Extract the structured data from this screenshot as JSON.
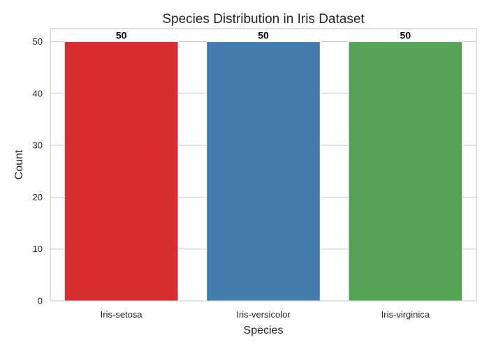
{
  "chart_data": {
    "type": "bar",
    "title": "Species Distribution in Iris Dataset",
    "xlabel": "Species",
    "ylabel": "Count",
    "categories": [
      "Iris-setosa",
      "Iris-versicolor",
      "Iris-virginica"
    ],
    "values": [
      50,
      50,
      50
    ],
    "data_labels": [
      "50",
      "50",
      "50"
    ],
    "colors": [
      "#d62e31",
      "#447cad",
      "#56a356"
    ],
    "ylim": [
      0,
      52.5
    ],
    "yticks": [
      0,
      10,
      20,
      30,
      40,
      50
    ],
    "ytick_labels": [
      "0",
      "10",
      "20",
      "30",
      "40",
      "50"
    ],
    "grid": "horizontal"
  }
}
